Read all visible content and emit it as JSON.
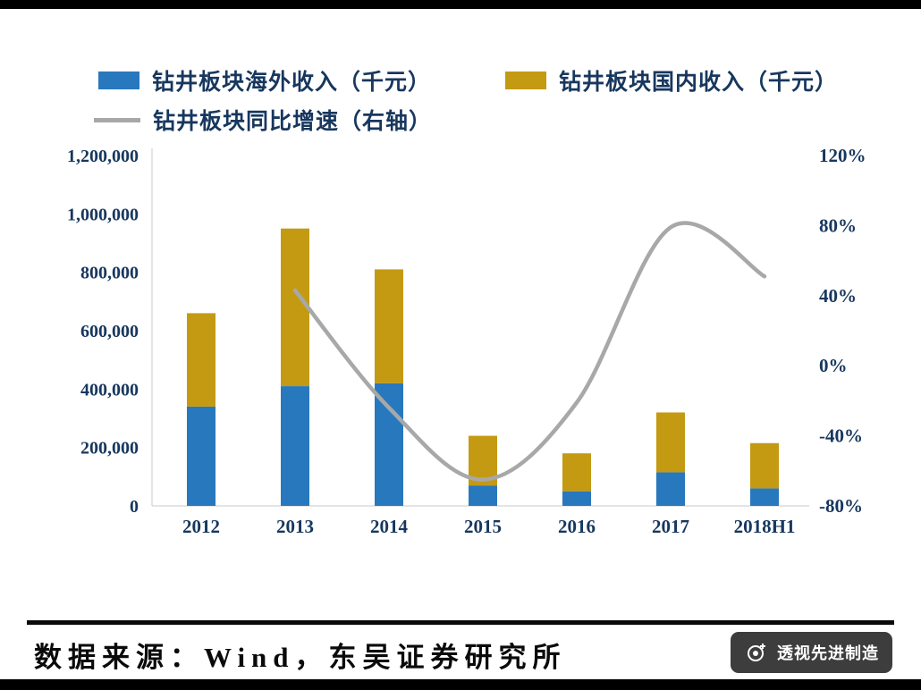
{
  "legend": {
    "overseas": "钻井板块海外收入（千元）",
    "domestic": "钻井板块国内收入（千元）",
    "growth": "钻井板块同比增速（右轴）"
  },
  "chart_data": {
    "type": "combo",
    "title": "",
    "categories": [
      "2012",
      "2013",
      "2014",
      "2015",
      "2016",
      "2017",
      "2018H1"
    ],
    "series": [
      {
        "name": "钻井板块海外收入（千元）",
        "type": "bar",
        "stack": true,
        "color": "#2878BE",
        "values": [
          340000,
          410000,
          420000,
          70000,
          50000,
          115000,
          60000
        ]
      },
      {
        "name": "钻井板块国内收入（千元）",
        "type": "bar",
        "stack": true,
        "color": "#C49A13",
        "values": [
          320000,
          540000,
          390000,
          170000,
          130000,
          205000,
          155000
        ]
      },
      {
        "name": "钻井板块同比增速（右轴）",
        "type": "line",
        "axis": "right",
        "color": "#A8A8A8",
        "values": [
          null,
          43,
          -24,
          -65,
          -21,
          79,
          51
        ]
      }
    ],
    "left_axis": {
      "min": 0,
      "max": 1200000,
      "step": 200000,
      "tick_labels": [
        "0",
        "200,000",
        "400,000",
        "600,000",
        "800,000",
        "1,000,000",
        "1,200,000"
      ]
    },
    "right_axis": {
      "min": -80,
      "max": 120,
      "step": 40,
      "tick_labels": [
        "-80%",
        "-40%",
        "0%",
        "40%",
        "80%",
        "120%"
      ]
    },
    "grid": false,
    "legend_position": "top"
  },
  "footer": {
    "source": "数据来源：Wind，东吴证券研究所",
    "badge": "透视先进制造"
  },
  "colors": {
    "bar_blue": "#2878BE",
    "bar_gold": "#C49A13",
    "line_gray": "#A8A8A8",
    "axis_text": "#17375E",
    "divider": "#000000",
    "badge_bg": "#3d3d3d"
  }
}
